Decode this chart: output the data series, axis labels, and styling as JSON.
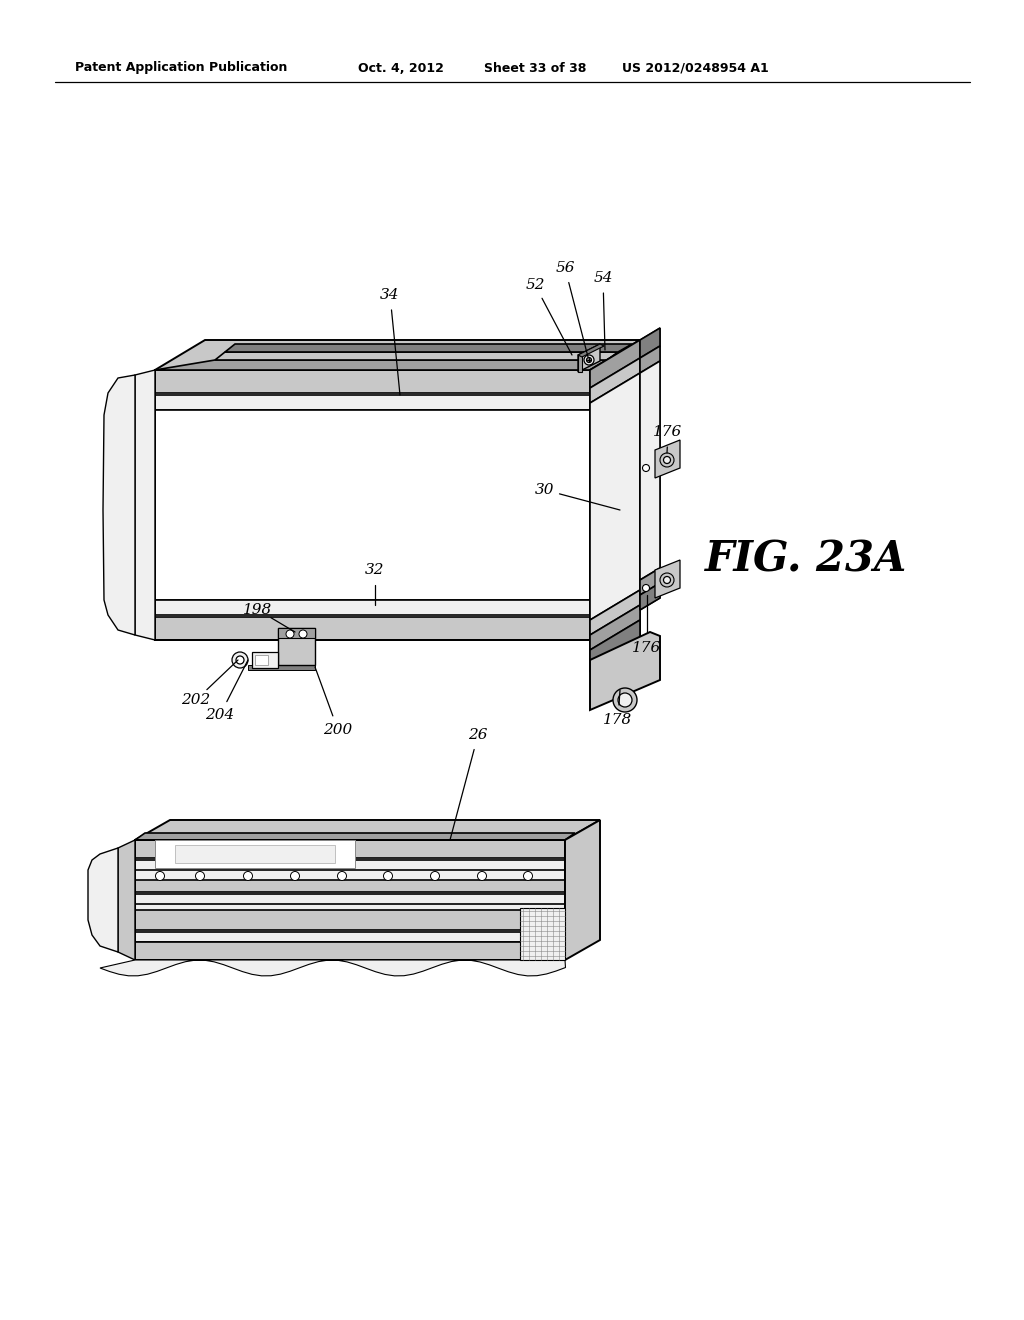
{
  "background_color": "#ffffff",
  "header_text": "Patent Application Publication",
  "header_date": "Oct. 4, 2012",
  "header_sheet": "Sheet 33 of 38",
  "header_patent": "US 2012/0248954 A1",
  "fig_label": "FIG. 23A",
  "lc": "#000000",
  "fill_white": "#ffffff",
  "fill_light": "#f0f0f0",
  "fill_mid": "#c8c8c8",
  "fill_dark": "#a0a0a0",
  "fill_darker": "#808080",
  "fill_darkest": "#606060"
}
